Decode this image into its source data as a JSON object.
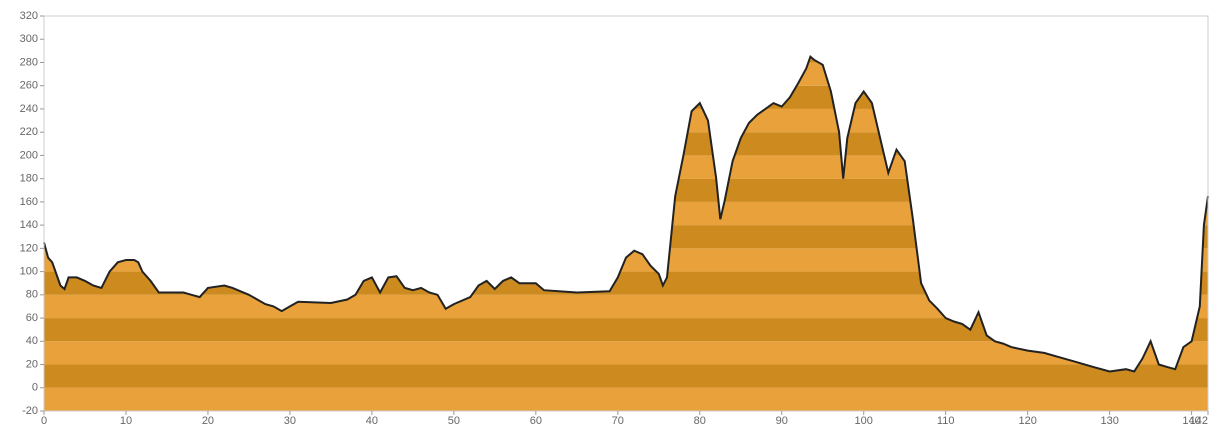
{
  "chart_data": {
    "type": "area",
    "x": [
      0,
      0.5,
      1,
      2,
      2.5,
      3,
      4,
      5,
      6,
      7,
      8,
      9,
      10,
      11,
      11.5,
      12,
      13,
      14,
      17,
      18,
      19,
      20,
      22,
      23,
      25,
      27,
      28,
      29,
      30,
      31,
      35,
      37,
      38,
      39,
      40,
      41,
      42,
      43,
      44,
      45,
      46,
      47,
      48,
      49,
      50,
      52,
      53,
      54,
      55,
      56,
      57,
      58,
      60,
      61,
      65,
      69,
      70,
      71,
      72,
      73,
      74,
      75,
      75.5,
      76,
      77,
      78,
      79,
      80,
      81,
      82,
      82.5,
      83,
      84,
      85,
      86,
      87,
      88,
      89,
      90,
      91,
      92,
      93,
      93.5,
      94,
      95,
      96,
      97,
      97.5,
      98,
      99,
      100,
      101,
      102,
      103,
      104,
      105,
      106,
      107,
      108,
      109,
      110,
      111,
      112,
      113,
      114,
      115,
      116,
      117,
      118,
      120,
      122,
      124,
      126,
      128,
      130,
      132,
      133,
      134,
      135,
      136,
      137,
      138,
      139,
      140,
      141,
      141.5,
      142
    ],
    "values": [
      125,
      112,
      108,
      88,
      85,
      95,
      95,
      92,
      88,
      86,
      100,
      108,
      110,
      110,
      108,
      100,
      92,
      82,
      82,
      80,
      78,
      86,
      88,
      86,
      80,
      72,
      70,
      66,
      70,
      74,
      73,
      76,
      80,
      92,
      95,
      82,
      95,
      96,
      86,
      84,
      86,
      82,
      80,
      68,
      72,
      78,
      88,
      92,
      85,
      92,
      95,
      90,
      90,
      84,
      82,
      83,
      95,
      112,
      118,
      115,
      105,
      98,
      88,
      95,
      165,
      200,
      238,
      245,
      230,
      180,
      145,
      160,
      195,
      215,
      228,
      235,
      240,
      245,
      242,
      250,
      262,
      275,
      285,
      282,
      278,
      255,
      220,
      180,
      215,
      245,
      255,
      245,
      215,
      185,
      205,
      195,
      145,
      90,
      75,
      68,
      60,
      57,
      55,
      50,
      65,
      45,
      40,
      38,
      35,
      32,
      30,
      26,
      22,
      18,
      14,
      16,
      14,
      25,
      40,
      20,
      18,
      16,
      35,
      40,
      70,
      140,
      165
    ],
    "xlim": [
      0,
      142
    ],
    "xticks": [
      0,
      10,
      20,
      30,
      40,
      50,
      60,
      70,
      80,
      90,
      100,
      110,
      120,
      130,
      140,
      142
    ],
    "ylim": [
      -20,
      320
    ],
    "yticks": [
      -20,
      0,
      20,
      40,
      60,
      80,
      100,
      120,
      140,
      160,
      180,
      200,
      220,
      240,
      260,
      280,
      300,
      320
    ],
    "color": "#222222",
    "band_colors": [
      "#e9a23b",
      "#cd8a1f"
    ]
  }
}
